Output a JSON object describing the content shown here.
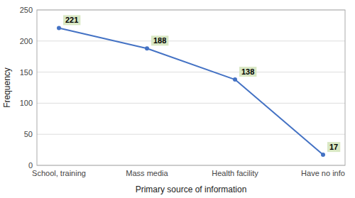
{
  "chart_data": {
    "type": "line",
    "categories": [
      "School, training",
      "Mass media",
      "Health facility",
      "Have no info"
    ],
    "values": [
      221,
      188,
      138,
      17
    ],
    "color": "#4472C4",
    "xlabel": "Primary source of information",
    "ylabel": "Frequency",
    "ylim": [
      0,
      250
    ],
    "yticks": [
      0,
      50,
      100,
      150,
      200,
      250
    ],
    "grid": true,
    "data_labels": true
  }
}
